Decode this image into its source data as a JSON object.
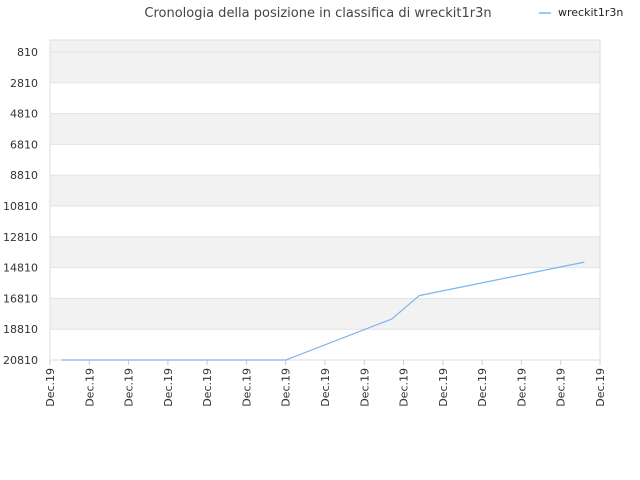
{
  "chart_data": {
    "type": "line",
    "title": "Cronologia della posizione in classifica di wreckit1r3n",
    "legend": {
      "position": "top-right"
    },
    "y_axis": {
      "reversed": true,
      "ylim": [
        20810,
        810
      ],
      "tick_labels": [
        "810",
        "2810",
        "4810",
        "6810",
        "8810",
        "10810",
        "12810",
        "14810",
        "16810",
        "18810",
        "20810"
      ],
      "ticks": [
        810,
        2810,
        4810,
        6810,
        8810,
        10810,
        12810,
        14810,
        16810,
        18810,
        20810
      ]
    },
    "x_axis": {
      "tick_labels": [
        "Dec.19",
        "Dec.19",
        "Dec.19",
        "Dec.19",
        "Dec.19",
        "Dec.19",
        "Dec.19",
        "Dec.19",
        "Dec.19",
        "Dec.19",
        "Dec.19",
        "Dec.19",
        "Dec.19",
        "Dec.19",
        "Dec.19"
      ],
      "xlim": [
        0,
        14
      ]
    },
    "grid": "horizontal bands",
    "series": [
      {
        "name": "wreckit1r3n",
        "color": "#7cb5ec",
        "x": [
          0.3,
          6.0,
          8.7,
          9.4,
          13.6
        ],
        "y": [
          20810,
          20810,
          18150,
          16630,
          14450
        ]
      }
    ]
  }
}
